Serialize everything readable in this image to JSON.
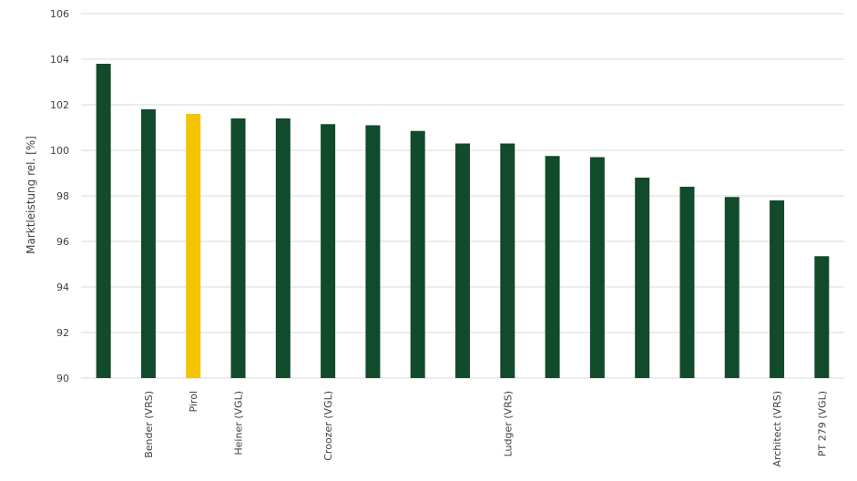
{
  "chart_data": {
    "type": "bar",
    "ylabel": "Marktleistung rel. [%]",
    "ylim": [
      90,
      106
    ],
    "yticks": [
      90,
      92,
      94,
      96,
      98,
      100,
      102,
      104,
      106
    ],
    "grid": true,
    "categories": [
      "",
      "Bender (VRS)",
      "Pirol",
      "Heiner (VGL)",
      "",
      "Croozer (VGL)",
      "",
      "",
      "",
      "Ludger (VRS)",
      "",
      "",
      "",
      "",
      "",
      "Architect (VRS)",
      "PT 279 (VGL)"
    ],
    "values": [
      103.8,
      101.8,
      101.6,
      101.4,
      101.4,
      101.15,
      101.1,
      100.85,
      100.3,
      100.3,
      99.75,
      99.7,
      98.8,
      98.4,
      97.95,
      97.8,
      95.35
    ],
    "highlight_index": 2,
    "colors": {
      "default": "#124a2c",
      "highlight": "#f5c400",
      "grid": "#d9d9d9"
    }
  }
}
